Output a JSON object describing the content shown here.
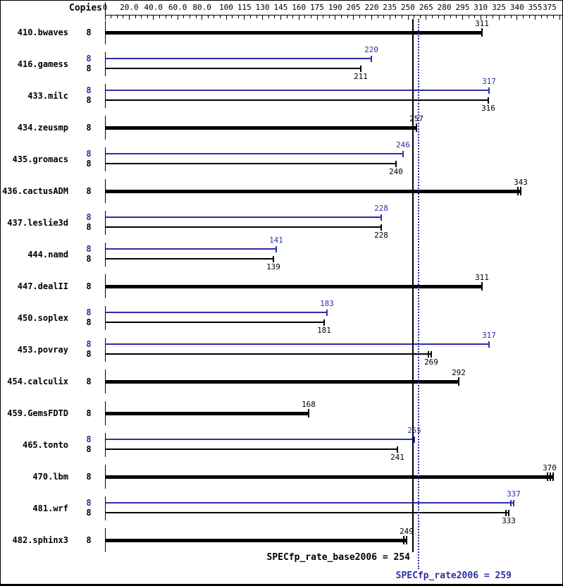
{
  "header": {
    "copies_label": "Copies"
  },
  "axis": {
    "min": 0,
    "max": 375,
    "minor_step": 5,
    "tick_values": [
      0,
      20,
      40,
      60,
      80,
      100,
      115,
      130,
      145,
      160,
      175,
      190,
      205,
      220,
      235,
      250,
      265,
      280,
      295,
      310,
      325,
      340,
      355,
      375
    ],
    "tick_labels": [
      "0",
      "20.0",
      "40.0",
      "60.0",
      "80.0",
      "100",
      "115",
      "130",
      "145",
      "160",
      "175",
      "190",
      "205",
      "220",
      "235",
      "250",
      "265",
      "280",
      "295",
      "310",
      "325",
      "340",
      "355",
      "375"
    ]
  },
  "colors": {
    "peak": "#2e2ea8",
    "base": "#000000"
  },
  "summary": {
    "base_text": "SPECfp_rate_base2006 = 254",
    "base_value": 254,
    "peak_text": "SPECfp_rate2006 = 259",
    "peak_value": 259
  },
  "rows": [
    {
      "name": "410.bwaves",
      "bars": [
        {
          "series": "base",
          "bold": true,
          "copies": "8",
          "value": 311,
          "label": "311",
          "label_pos": "above",
          "marks": 1
        }
      ]
    },
    {
      "name": "416.gamess",
      "bars": [
        {
          "series": "peak",
          "bold": false,
          "copies": "8",
          "value": 220,
          "label": "220",
          "label_pos": "above",
          "marks": 1
        },
        {
          "series": "base",
          "bold": false,
          "copies": "8",
          "value": 211,
          "label": "211",
          "label_pos": "below",
          "marks": 1
        }
      ]
    },
    {
      "name": "433.milc",
      "bars": [
        {
          "series": "peak",
          "bold": false,
          "copies": "8",
          "value": 317,
          "label": "317",
          "label_pos": "above",
          "marks": 1
        },
        {
          "series": "base",
          "bold": false,
          "copies": "8",
          "value": 316,
          "label": "316",
          "label_pos": "below",
          "marks": 1
        }
      ]
    },
    {
      "name": "434.zeusmp",
      "bars": [
        {
          "series": "base",
          "bold": true,
          "copies": "8",
          "value": 257,
          "label": "257",
          "label_pos": "above",
          "marks": 1
        }
      ]
    },
    {
      "name": "435.gromacs",
      "bars": [
        {
          "series": "peak",
          "bold": false,
          "copies": "8",
          "value": 246,
          "label": "246",
          "label_pos": "above",
          "marks": 1
        },
        {
          "series": "base",
          "bold": false,
          "copies": "8",
          "value": 240,
          "label": "240",
          "label_pos": "below",
          "marks": 1
        }
      ]
    },
    {
      "name": "436.cactusADM",
      "bars": [
        {
          "series": "base",
          "bold": true,
          "copies": "8",
          "value": 343,
          "label": "343",
          "label_pos": "above",
          "marks": 2
        }
      ]
    },
    {
      "name": "437.leslie3d",
      "bars": [
        {
          "series": "peak",
          "bold": false,
          "copies": "8",
          "value": 228,
          "label": "228",
          "label_pos": "above",
          "marks": 1
        },
        {
          "series": "base",
          "bold": false,
          "copies": "8",
          "value": 228,
          "label": "228",
          "label_pos": "below",
          "marks": 1
        }
      ]
    },
    {
      "name": "444.namd",
      "bars": [
        {
          "series": "peak",
          "bold": false,
          "copies": "8",
          "value": 141,
          "label": "141",
          "label_pos": "above",
          "marks": 1
        },
        {
          "series": "base",
          "bold": false,
          "copies": "8",
          "value": 139,
          "label": "139",
          "label_pos": "below",
          "marks": 1
        }
      ]
    },
    {
      "name": "447.dealII",
      "bars": [
        {
          "series": "base",
          "bold": true,
          "copies": "8",
          "value": 311,
          "label": "311",
          "label_pos": "above",
          "marks": 1
        }
      ]
    },
    {
      "name": "450.soplex",
      "bars": [
        {
          "series": "peak",
          "bold": false,
          "copies": "8",
          "value": 183,
          "label": "183",
          "label_pos": "above",
          "marks": 1
        },
        {
          "series": "base",
          "bold": false,
          "copies": "8",
          "value": 181,
          "label": "181",
          "label_pos": "below",
          "marks": 1
        }
      ]
    },
    {
      "name": "453.povray",
      "bars": [
        {
          "series": "peak",
          "bold": false,
          "copies": "8",
          "value": 317,
          "label": "317",
          "label_pos": "above",
          "marks": 1
        },
        {
          "series": "base",
          "bold": false,
          "copies": "8",
          "value": 269,
          "label": "269",
          "label_pos": "below",
          "marks": 2
        }
      ]
    },
    {
      "name": "454.calculix",
      "bars": [
        {
          "series": "base",
          "bold": true,
          "copies": "8",
          "value": 292,
          "label": "292",
          "label_pos": "above",
          "marks": 1
        }
      ]
    },
    {
      "name": "459.GemsFDTD",
      "bars": [
        {
          "series": "base",
          "bold": true,
          "copies": "8",
          "value": 168,
          "label": "168",
          "label_pos": "above",
          "marks": 1
        }
      ]
    },
    {
      "name": "465.tonto",
      "bars": [
        {
          "series": "peak",
          "bold": false,
          "copies": "8",
          "value": 255,
          "label": "255",
          "label_pos": "above",
          "marks": 1
        },
        {
          "series": "base",
          "bold": false,
          "copies": "8",
          "value": 241,
          "label": "241",
          "label_pos": "below",
          "marks": 1
        }
      ]
    },
    {
      "name": "470.lbm",
      "bars": [
        {
          "series": "base",
          "bold": true,
          "copies": "8",
          "value": 370,
          "label": "370",
          "label_pos": "above",
          "marks": 3
        }
      ]
    },
    {
      "name": "481.wrf",
      "bars": [
        {
          "series": "peak",
          "bold": false,
          "copies": "8",
          "value": 337,
          "label": "337",
          "label_pos": "above",
          "marks": 2
        },
        {
          "series": "base",
          "bold": false,
          "copies": "8",
          "value": 333,
          "label": "333",
          "label_pos": "below",
          "marks": 2
        }
      ]
    },
    {
      "name": "482.sphinx3",
      "bars": [
        {
          "series": "base",
          "bold": true,
          "copies": "8",
          "value": 249,
          "label": "249",
          "label_pos": "above",
          "marks": 2
        }
      ]
    }
  ],
  "chart_data": {
    "type": "bar",
    "orientation": "horizontal",
    "title": "",
    "xlabel": "",
    "ylabel": "Copies",
    "xlim": [
      0,
      375
    ],
    "grid": false,
    "legend_position": "none",
    "categories": [
      "410.bwaves",
      "416.gamess",
      "433.milc",
      "434.zeusmp",
      "435.gromacs",
      "436.cactusADM",
      "437.leslie3d",
      "444.namd",
      "447.dealII",
      "450.soplex",
      "453.povray",
      "454.calculix",
      "459.GemsFDTD",
      "465.tonto",
      "470.lbm",
      "481.wrf",
      "482.sphinx3"
    ],
    "copies": [
      8,
      8,
      8,
      8,
      8,
      8,
      8,
      8,
      8,
      8,
      8,
      8,
      8,
      8,
      8,
      8,
      8
    ],
    "series": [
      {
        "name": "SPECfp_rate2006 (peak)",
        "color": "#2e2ea8",
        "values": [
          null,
          220,
          317,
          null,
          246,
          null,
          228,
          141,
          null,
          183,
          317,
          null,
          null,
          255,
          null,
          337,
          null
        ]
      },
      {
        "name": "SPECfp_rate_base2006 (base)",
        "color": "#000000",
        "values": [
          311,
          211,
          316,
          257,
          240,
          343,
          228,
          139,
          311,
          181,
          269,
          292,
          168,
          241,
          370,
          333,
          249
        ]
      }
    ],
    "reference_lines": [
      {
        "label": "SPECfp_rate_base2006",
        "value": 254,
        "style": "solid",
        "color": "#000000"
      },
      {
        "label": "SPECfp_rate2006",
        "value": 259,
        "style": "dotted",
        "color": "#2e2ea8"
      }
    ],
    "x_major_ticks": [
      0,
      20,
      40,
      60,
      80,
      100,
      115,
      130,
      145,
      160,
      175,
      190,
      205,
      220,
      235,
      250,
      265,
      280,
      295,
      310,
      325,
      340,
      355,
      375
    ]
  }
}
